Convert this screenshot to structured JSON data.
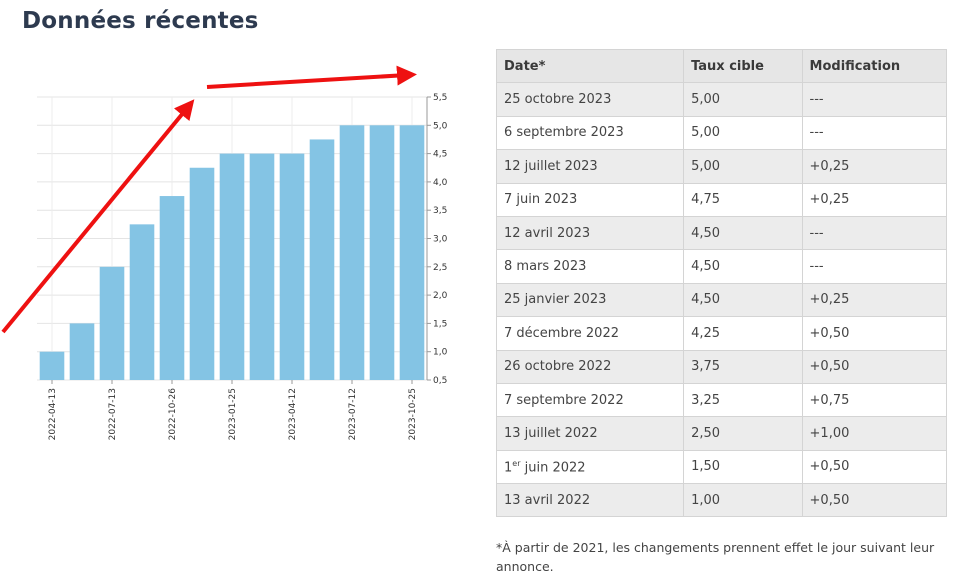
{
  "header": {
    "title": "Données récentes"
  },
  "chart_data": {
    "type": "bar",
    "title": "",
    "xlabel": "",
    "ylabel": "",
    "y_axis_position": "right",
    "ylim": [
      0.5,
      5.5
    ],
    "yticks": [
      "0,5",
      "1,0",
      "1,5",
      "2,0",
      "2,5",
      "3,0",
      "3,5",
      "4,0",
      "4,5",
      "5,0",
      "5,5"
    ],
    "x_tick_labels": [
      "2022-04-13",
      "2022-07-13",
      "2022-10-26",
      "2023-01-25",
      "2023-04-12",
      "2023-07-12",
      "2023-10-25"
    ],
    "categories": [
      "2022-04-13",
      "2022-06-01",
      "2022-07-13",
      "2022-09-07",
      "2022-10-26",
      "2022-12-07",
      "2023-01-25",
      "2023-03-08",
      "2023-04-12",
      "2023-06-07",
      "2023-07-12",
      "2023-09-06",
      "2023-10-25"
    ],
    "values": [
      1.0,
      1.5,
      2.5,
      3.25,
      3.75,
      4.25,
      4.5,
      4.5,
      4.5,
      4.75,
      5.0,
      5.0,
      5.0
    ],
    "bar_color": "#84c4e4",
    "grid": true,
    "annotation_color": "#ee1111"
  },
  "table": {
    "headers": [
      "Date*",
      "Taux cible",
      "Modification"
    ],
    "rows": [
      [
        "25 octobre 2023",
        "5,00",
        "---"
      ],
      [
        "6 septembre 2023",
        "5,00",
        "---"
      ],
      [
        "12 juillet 2023",
        "5,00",
        "+0,25"
      ],
      [
        "7 juin 2023",
        "4,75",
        "+0,25"
      ],
      [
        "12 avril 2023",
        "4,50",
        "---"
      ],
      [
        "8 mars 2023",
        "4,50",
        "---"
      ],
      [
        "25 janvier 2023",
        "4,50",
        "+0,25"
      ],
      [
        "7 décembre 2022",
        "4,25",
        "+0,50"
      ],
      [
        "26 octobre 2022",
        "3,75",
        "+0,50"
      ],
      [
        "7 septembre 2022",
        "3,25",
        "+0,75"
      ],
      [
        "13 juillet 2022",
        "2,50",
        "+1,00"
      ],
      [
        "1er juin 2022",
        "1,50",
        "+0,50"
      ],
      [
        "13 avril 2022",
        "1,00",
        "+0,50"
      ]
    ]
  },
  "footnote": "*À partir de 2021, les changements prennent effet le jour suivant leur annonce."
}
